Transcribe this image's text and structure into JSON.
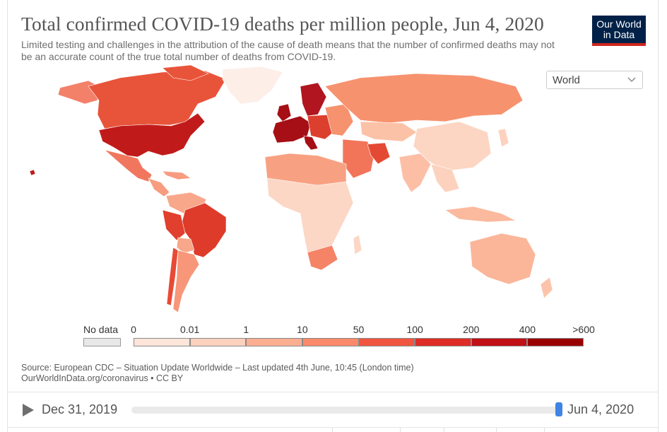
{
  "header": {
    "title": "Total confirmed COVID-19 deaths per million people, Jun 4, 2020",
    "subtitle": "Limited testing and challenges in the attribution of the cause of death means that the number of confirmed deaths may not be an accurate count of the true total number of deaths from COVID-19."
  },
  "logo": {
    "line1": "Our World",
    "line2": "in Data"
  },
  "region_select": {
    "value": "World",
    "icon": "chevron-down-icon"
  },
  "legend": {
    "nodata_label": "No data",
    "nodata_color": "#e8e8e8",
    "ticks": [
      "0",
      "0.01",
      "1",
      "10",
      "50",
      "100",
      "200",
      "400",
      ">600"
    ],
    "colors": [
      "#fee5d9",
      "#fcd1bd",
      "#fcae91",
      "#fb8a6a",
      "#f0553f",
      "#de2d26",
      "#c11016",
      "#990000"
    ]
  },
  "source": {
    "line1": "Source: European CDC – Situation Update Worldwide – Last updated 4th June, 10:45 (London time)",
    "line2": "OurWorldInData.org/coronavirus • CC BY"
  },
  "timeline": {
    "start": "Dec 31, 2019",
    "end": "Jun 4, 2020",
    "position": 1.0,
    "play_icon": "play-icon"
  },
  "map_colors": {
    "na_north": "#e8543a",
    "usa": "#c11a1a",
    "greenland": "#fdeee8",
    "alaska": "#f3816a",
    "mexico": "#f0775e",
    "central_am": "#f79c80",
    "s_am_brazil": "#de3b2a",
    "s_am_peru": "#e0402d",
    "s_am_chile": "#e84a36",
    "s_am_argentina": "#f79679",
    "s_am_other": "#f8a78a",
    "europe_west": "#a50f15",
    "europe_mid": "#dd3f2e",
    "scandinavia_sweden": "#b01520",
    "russia": "#f7926f",
    "middle_east": "#f27559",
    "iran": "#e44a33",
    "asia": "#fcd2be",
    "china": "#fcd5c3",
    "india": "#fcbfa6",
    "africa_north": "#f8a182",
    "africa": "#fcd7c5",
    "south_africa": "#f58466",
    "australia": "#fbb699",
    "indonesia": "#fbb99d",
    "nz": "#fcc3ab",
    "kazakh": "#fcc2a8"
  }
}
